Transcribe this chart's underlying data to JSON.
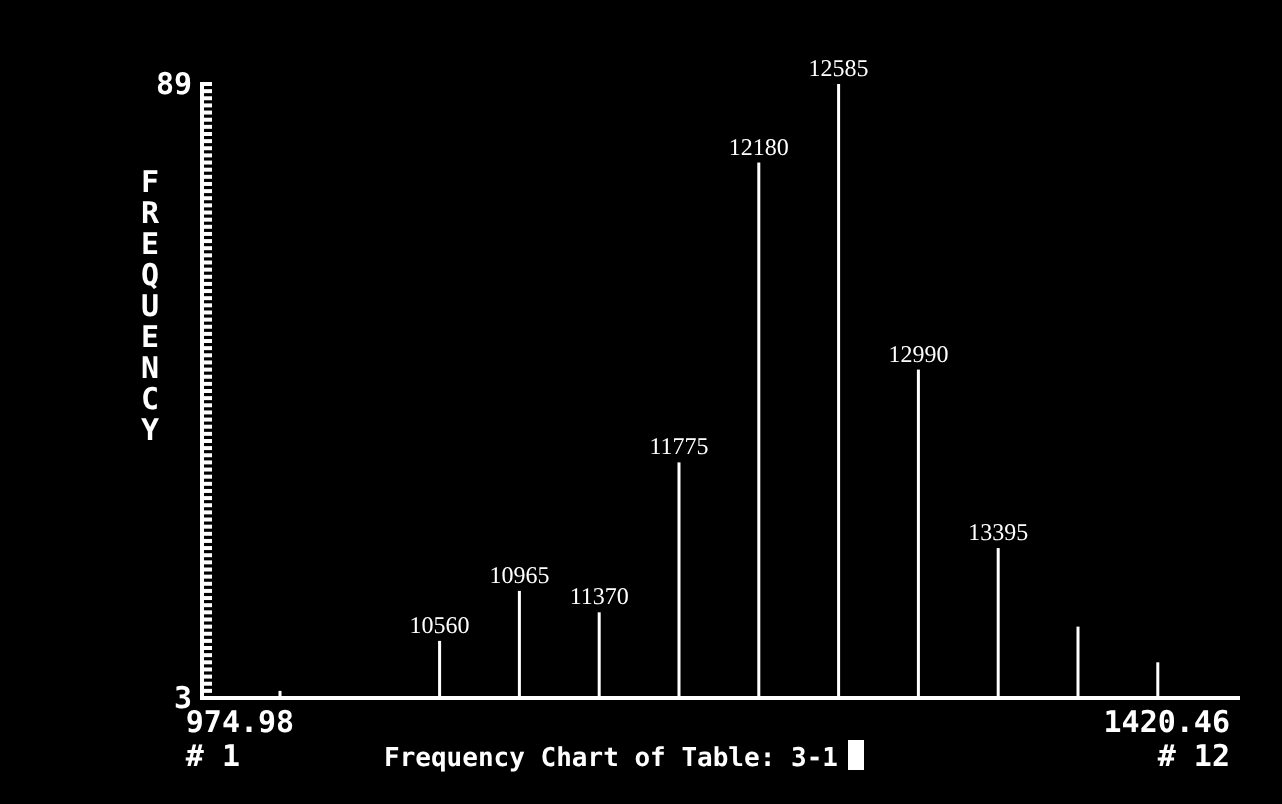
{
  "chart_data": {
    "type": "bar",
    "title": "Frequency Chart of Table: 3-1",
    "ylabel": "FREQUENCY",
    "categories": [
      null,
      null,
      "10560",
      "10965",
      "11370",
      "11775",
      "12180",
      "12585",
      "12990",
      "13395",
      null,
      null
    ],
    "values": [
      4,
      3,
      11,
      18,
      15,
      36,
      78,
      89,
      49,
      24,
      13,
      8
    ],
    "color": "#ffffff",
    "ylim": [
      3,
      89
    ],
    "yticks": [
      3,
      {
        "value": 4,
        "label": null
      },
      {
        "value": 5,
        "label": null
      },
      {
        "value": 6,
        "label": null
      },
      {
        "value": 7,
        "label": null
      },
      {
        "value": 8,
        "label": null
      },
      {
        "value": 9,
        "label": null
      },
      {
        "value": 10,
        "label": null
      },
      {
        "value": 11,
        "label": null
      },
      {
        "value": 12,
        "label": null
      },
      {
        "value": 13,
        "label": null
      },
      {
        "value": 14,
        "label": null
      },
      {
        "value": 15,
        "label": null
      },
      {
        "value": 16,
        "label": null
      },
      {
        "value": 17,
        "label": null
      },
      {
        "value": 18,
        "label": null
      },
      {
        "value": 19,
        "label": null
      },
      {
        "value": 20,
        "label": null
      },
      {
        "value": 21,
        "label": null
      },
      {
        "value": 22,
        "label": null
      },
      {
        "value": 23,
        "label": null
      },
      {
        "value": 24,
        "label": null
      },
      {
        "value": 25,
        "label": null
      },
      {
        "value": 26,
        "label": null
      },
      {
        "value": 27,
        "label": null
      },
      {
        "value": 28,
        "label": null
      },
      {
        "value": 29,
        "label": null
      },
      {
        "value": 30,
        "label": null
      },
      {
        "value": 31,
        "label": null
      },
      {
        "value": 32,
        "label": null
      },
      {
        "value": 33,
        "label": null
      },
      {
        "value": 34,
        "label": null
      },
      {
        "value": 35,
        "label": null
      },
      {
        "value": 36,
        "label": null
      },
      {
        "value": 37,
        "label": null
      },
      {
        "value": 38,
        "label": null
      },
      {
        "value": 39,
        "label": null
      },
      {
        "value": 40,
        "label": null
      },
      {
        "value": 41,
        "label": null
      },
      {
        "value": 42,
        "label": null
      },
      {
        "value": 43,
        "label": null
      },
      {
        "value": 44,
        "label": null
      },
      {
        "value": 45,
        "label": null
      },
      {
        "value": 46,
        "label": null
      },
      {
        "value": 47,
        "label": null
      },
      {
        "value": 48,
        "label": null
      },
      {
        "value": 49,
        "label": null
      },
      {
        "value": 50,
        "label": null
      },
      {
        "value": 51,
        "label": null
      },
      {
        "value": 52,
        "label": null
      },
      {
        "value": 53,
        "label": null
      },
      {
        "value": 54,
        "label": null
      },
      {
        "value": 55,
        "label": null
      },
      {
        "value": 56,
        "label": null
      },
      {
        "value": 57,
        "label": null
      },
      {
        "value": 58,
        "label": null
      },
      {
        "value": 59,
        "label": null
      },
      {
        "value": 60,
        "label": null
      },
      {
        "value": 61,
        "label": null
      },
      {
        "value": 62,
        "label": null
      },
      {
        "value": 63,
        "label": null
      },
      {
        "value": 64,
        "label": null
      },
      {
        "value": 65,
        "label": null
      },
      {
        "value": 66,
        "label": null
      },
      {
        "value": 67,
        "label": null
      },
      {
        "value": 68,
        "label": null
      },
      {
        "value": 69,
        "label": null
      },
      {
        "value": 70,
        "label": null
      },
      {
        "value": 71,
        "label": null
      },
      {
        "value": 72,
        "label": null
      },
      {
        "value": 73,
        "label": null
      },
      {
        "value": 74,
        "label": null
      },
      {
        "value": 75,
        "label": null
      },
      {
        "value": 76,
        "label": null
      },
      {
        "value": 77,
        "label": null
      },
      {
        "value": 78,
        "label": null
      },
      {
        "value": 79,
        "label": null
      },
      {
        "value": 80,
        "label": null
      },
      {
        "value": 81,
        "label": null
      },
      {
        "value": 82,
        "label": null
      },
      {
        "value": 83,
        "label": null
      },
      {
        "value": 84,
        "label": null
      },
      {
        "value": 85,
        "label": null
      },
      {
        "value": 86,
        "label": null
      },
      {
        "value": 87,
        "label": null
      },
      {
        "value": 88,
        "label": null
      },
      89
    ],
    "annotations": [
      "974.98",
      "# 1",
      "1420.46",
      "# 12"
    ]
  }
}
